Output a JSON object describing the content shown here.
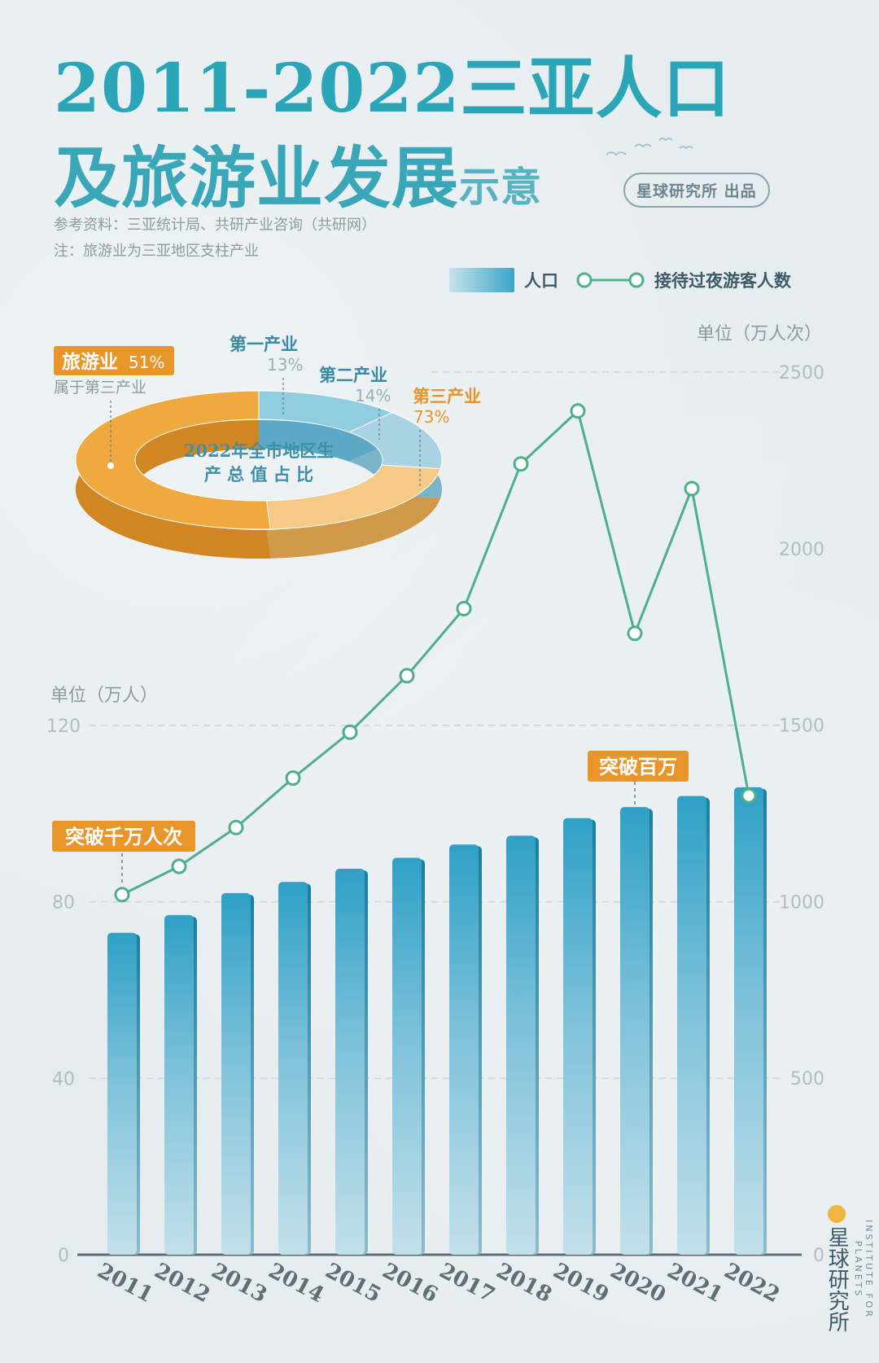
{
  "title": {
    "line1": "2011-2022三亚人口",
    "line2": "及旅游业发展",
    "line2_small": "示意"
  },
  "badge": "星球研究所 出品",
  "notes": {
    "source": "参考资料：三亚统计局、共研产业咨询（共研网）",
    "note": "注：旅游业为三亚地区支柱产业"
  },
  "legend": {
    "bar": "人口",
    "line": "接待过夜游客人数"
  },
  "units": {
    "left": "单位（万人）",
    "right": "单位（万人次）"
  },
  "annotations": {
    "line_milestone": "突破千万人次",
    "bar_milestone": "突破百万"
  },
  "donut": {
    "center_line1": "2022年全市地区生",
    "center_line2": "产 总 值 占 比",
    "segments": [
      {
        "name": "第一产业",
        "value": 13,
        "label": "13%"
      },
      {
        "name": "第二产业",
        "value": 14,
        "label": "14%"
      },
      {
        "name": "第三产业",
        "value": 73,
        "label": "73%"
      }
    ],
    "tourism": {
      "name": "旅游业",
      "value": 51,
      "label": "51%",
      "note": "属于第三产业"
    }
  },
  "watermark": {
    "cn": "星球研究所",
    "en": "INSTITUTE FOR PLANETS"
  },
  "colors": {
    "bar_top": "#2fa0c6",
    "bar_bottom": "#c3e0ea",
    "line": "#4fae8c",
    "accent_orange": "#e8952a",
    "title": "#2aa6b8",
    "axis_text": "#b0bec3"
  },
  "chart_data": {
    "type": "bar",
    "categories": [
      "2011",
      "2012",
      "2013",
      "2014",
      "2015",
      "2016",
      "2017",
      "2018",
      "2019",
      "2020",
      "2021",
      "2022"
    ],
    "left_axis": {
      "range": [
        0,
        120
      ],
      "ticks": [
        "0",
        "40",
        "80",
        "120"
      ]
    },
    "right_axis": {
      "range": [
        0,
        2500
      ],
      "ticks": [
        "0",
        "500",
        "1000",
        "1500",
        "2000",
        "2500"
      ]
    },
    "series": [
      {
        "name": "人口",
        "type": "bar",
        "axis": "left",
        "values": [
          73,
          77,
          82,
          84.5,
          87.5,
          90,
          93,
          95,
          99,
          101.5,
          104,
          106
        ]
      },
      {
        "name": "接待过夜游客人数",
        "type": "line",
        "axis": "right",
        "values": [
          1020,
          1100,
          1210,
          1350,
          1480,
          1640,
          1830,
          2240,
          2390,
          1760,
          2170,
          1300
        ]
      }
    ],
    "grid": "dashed horizontal"
  }
}
